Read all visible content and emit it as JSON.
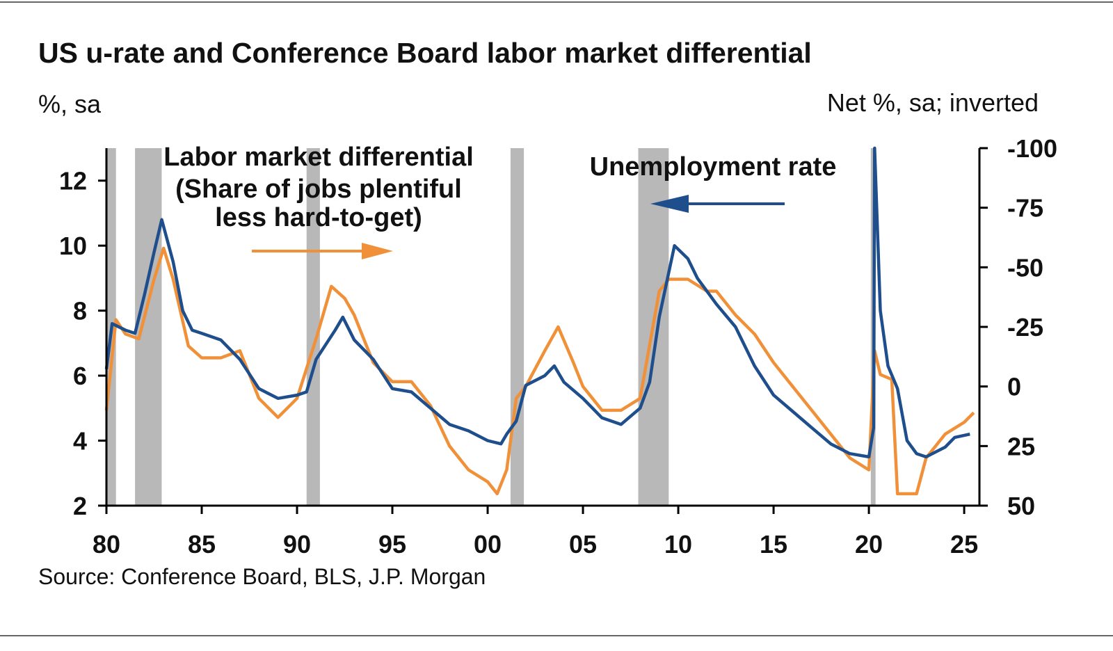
{
  "chart_data": {
    "type": "line",
    "title": "US u-rate and Conference Board labor market differential",
    "y_label": "%, sa",
    "y2_label": "Net %, sa; inverted",
    "source": "Source: Conference Board, BLS, J.P. Morgan",
    "annotation_lines": [
      "(Share of jobs plentiful",
      "less hard-to-get)"
    ],
    "xlim": [
      1980,
      2025.8
    ],
    "xticks": [
      {
        "value": 1980,
        "label": "80"
      },
      {
        "value": 1985,
        "label": "85"
      },
      {
        "value": 1990,
        "label": "90"
      },
      {
        "value": 1995,
        "label": "95"
      },
      {
        "value": 2000,
        "label": "00"
      },
      {
        "value": 2005,
        "label": "05"
      },
      {
        "value": 2010,
        "label": "10"
      },
      {
        "value": 2015,
        "label": "15"
      },
      {
        "value": 2020,
        "label": "20"
      },
      {
        "value": 2025,
        "label": "25"
      }
    ],
    "ylim": [
      2,
      13
    ],
    "yticks": [
      2,
      4,
      6,
      8,
      10,
      12
    ],
    "y2lim": [
      50,
      -100
    ],
    "y2ticks": [
      50,
      25,
      0,
      -25,
      -50,
      -75,
      -100
    ],
    "recessions": [
      [
        1980.0,
        1980.5
      ],
      [
        1981.5,
        1982.9
      ],
      [
        1990.5,
        1991.2
      ],
      [
        2001.2,
        2001.9
      ],
      [
        2007.9,
        2009.5
      ],
      [
        2020.1,
        2020.35
      ]
    ],
    "recession_color": "#b8b8b8",
    "series": [
      {
        "name": "Labor market differential",
        "color": "#f0913a",
        "axis": "y2",
        "x": [
          1980.0,
          1980.5,
          1981,
          1981.7,
          1982.5,
          1983,
          1983.5,
          1984.3,
          1985,
          1986,
          1987,
          1987.5,
          1988,
          1989,
          1990,
          1991,
          1991.8,
          1992.5,
          1993,
          1994,
          1995,
          1996,
          1997,
          1998,
          1999,
          2000,
          2000.5,
          2001,
          2001.5,
          2002,
          2003,
          2003.7,
          2004.5,
          2005,
          2006,
          2007,
          2008,
          2009,
          2009.5,
          2010.5,
          2011.5,
          2012,
          2013,
          2014,
          2015,
          2016,
          2017,
          2018,
          2019,
          2020,
          2020.3,
          2020.6,
          2021.2,
          2021.5,
          2022,
          2022.5,
          2023,
          2024,
          2025,
          2025.5
        ],
        "values": [
          10,
          -28,
          -22,
          -20,
          -45,
          -58,
          -45,
          -17,
          -12,
          -12,
          -15,
          -5,
          5,
          13,
          5,
          -20,
          -42,
          -37,
          -30,
          -10,
          -2,
          -2,
          8,
          25,
          35,
          40,
          45,
          35,
          5,
          0,
          -15,
          -25,
          -10,
          0,
          10,
          10,
          5,
          -40,
          -45,
          -45,
          -40,
          -40,
          -30,
          -22,
          -10,
          0,
          10,
          20,
          30,
          35,
          -15,
          -5,
          -3,
          45,
          45,
          45,
          30,
          20,
          15,
          11
        ]
      },
      {
        "name": "Unemployment rate",
        "color": "#1f4e8c",
        "x": [
          1980.0,
          1980.3,
          1981,
          1981.5,
          1982,
          1982.5,
          1982.9,
          1983.5,
          1984,
          1984.5,
          1985,
          1986,
          1987,
          1988,
          1989,
          1990,
          1990.5,
          1991,
          1992,
          1992.4,
          1993,
          1994,
          1995,
          1996,
          1997,
          1998,
          1999,
          2000,
          2000.7,
          2001,
          2001.5,
          2002,
          2003,
          2003.5,
          2004,
          2005,
          2006,
          2007,
          2008,
          2008.5,
          2009,
          2009.8,
          2010.5,
          2011,
          2012,
          2013,
          2014,
          2015,
          2016,
          2017,
          2018,
          2019,
          2020.0,
          2020.25,
          2020.3,
          2020.6,
          2021,
          2021.5,
          2022,
          2022.5,
          2023,
          2024,
          2024.5,
          2025.3
        ],
        "values": [
          6.2,
          7.6,
          7.4,
          7.3,
          8.5,
          9.8,
          10.8,
          9.5,
          8.0,
          7.4,
          7.3,
          7.1,
          6.5,
          5.6,
          5.3,
          5.4,
          5.5,
          6.5,
          7.4,
          7.8,
          7.1,
          6.5,
          5.6,
          5.5,
          5.0,
          4.5,
          4.3,
          4.0,
          3.9,
          4.2,
          4.6,
          5.7,
          6.0,
          6.3,
          5.8,
          5.3,
          4.7,
          4.5,
          5.0,
          5.8,
          7.8,
          10.0,
          9.6,
          9.0,
          8.2,
          7.5,
          6.3,
          5.4,
          4.9,
          4.4,
          3.9,
          3.6,
          3.5,
          4.4,
          13,
          8.0,
          6.3,
          5.6,
          4.0,
          3.6,
          3.5,
          3.8,
          4.1,
          4.2
        ]
      }
    ]
  }
}
